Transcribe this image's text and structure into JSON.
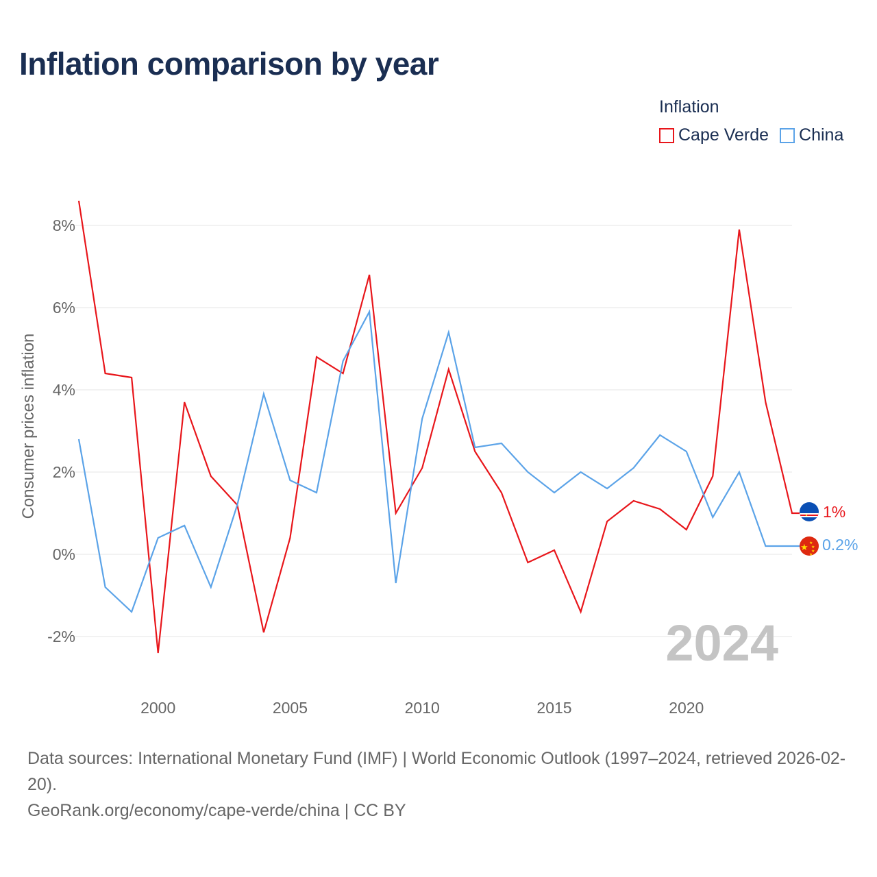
{
  "title": "Inflation comparison by year",
  "legend": {
    "title": "Inflation",
    "items": [
      {
        "label": "Cape Verde",
        "color": "#e8161b"
      },
      {
        "label": "China",
        "color": "#5ba3e8"
      }
    ]
  },
  "year_watermark": "2024",
  "end_labels": {
    "cape_verde": "1%",
    "china": "0.2%"
  },
  "footer": {
    "sources": "Data sources: International Monetary Fund (IMF) | World Economic Outlook (1997–2024, retrieved 2026-02-20).",
    "link": "GeoRank.org/economy/cape-verde/china | CC BY"
  },
  "chart_data": {
    "type": "line",
    "title": "Inflation comparison by year",
    "xlabel": "",
    "ylabel": "Consumer prices inflation",
    "xlim": [
      1997,
      2024
    ],
    "ylim": [
      -3,
      9
    ],
    "y_ticks": [
      -2,
      0,
      2,
      4,
      6,
      8
    ],
    "y_tick_labels": [
      "-2%",
      "0%",
      "2%",
      "4%",
      "6%",
      "8%"
    ],
    "x_ticks": [
      2000,
      2005,
      2010,
      2015,
      2020
    ],
    "x_tick_labels": [
      "2000",
      "2005",
      "2010",
      "2015",
      "2020"
    ],
    "grid": true,
    "x": [
      1997,
      1998,
      1999,
      2000,
      2001,
      2002,
      2003,
      2004,
      2005,
      2006,
      2007,
      2008,
      2009,
      2010,
      2011,
      2012,
      2013,
      2014,
      2015,
      2016,
      2017,
      2018,
      2019,
      2020,
      2021,
      2022,
      2023,
      2024
    ],
    "series": [
      {
        "name": "Cape Verde",
        "color": "#e8161b",
        "values": [
          8.6,
          4.4,
          4.3,
          -2.4,
          3.7,
          1.9,
          1.2,
          -1.9,
          0.4,
          4.8,
          4.4,
          6.8,
          1.0,
          2.1,
          4.5,
          2.5,
          1.5,
          -0.2,
          0.1,
          -1.4,
          0.8,
          1.3,
          1.1,
          0.6,
          1.9,
          7.9,
          3.7,
          1.0
        ]
      },
      {
        "name": "China",
        "color": "#5ba3e8",
        "values": [
          2.8,
          -0.8,
          -1.4,
          0.4,
          0.7,
          -0.8,
          1.2,
          3.9,
          1.8,
          1.5,
          4.7,
          5.9,
          -0.7,
          3.3,
          5.4,
          2.6,
          2.7,
          2.0,
          1.5,
          2.0,
          1.6,
          2.1,
          2.9,
          2.5,
          0.9,
          2.0,
          0.2,
          0.2
        ]
      }
    ]
  }
}
